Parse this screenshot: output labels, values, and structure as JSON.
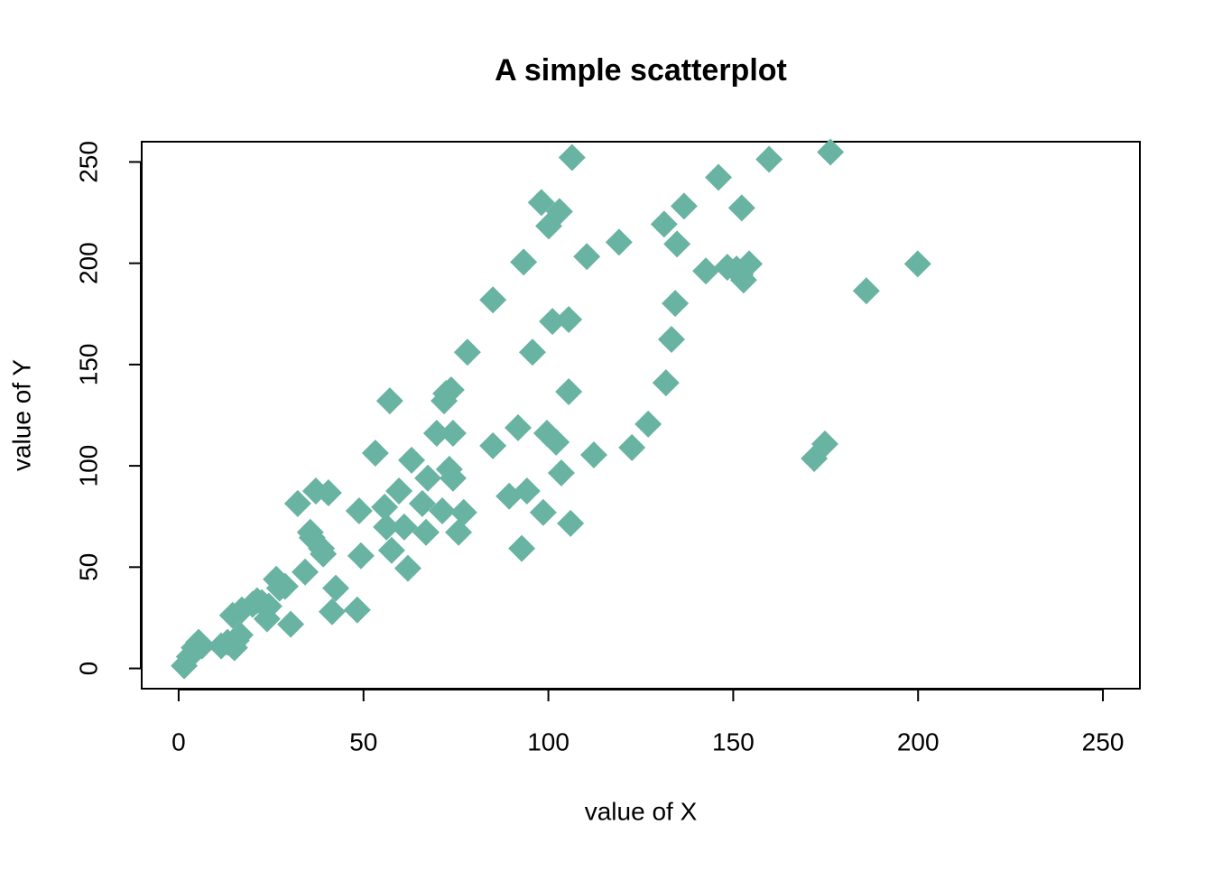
{
  "chart_data": {
    "type": "scatter",
    "title": "A simple scatterplot",
    "x_label": "value of X",
    "y_label": "value of Y",
    "x": [
      1.5,
      2.9,
      4.2,
      5.4,
      6.3,
      11.5,
      13.2,
      14.6,
      15.1,
      15.6,
      16.6,
      14.6,
      17.1,
      20.0,
      21.2,
      22.5,
      23.9,
      24.4,
      26.4,
      27.3,
      28.8,
      30.3,
      32.2,
      34.2,
      35.6,
      36.1,
      37.1,
      38.6,
      39.1,
      40.5,
      41.5,
      42.5,
      48.3,
      48.8,
      49.3,
      53.2,
      55.7,
      56.2,
      57.1,
      57.6,
      59.6,
      61.0,
      62.0,
      63.0,
      65.9,
      66.9,
      67.4,
      69.8,
      71.3,
      71.8,
      72.3,
      73.2,
      73.7,
      74.2,
      74.2,
      75.7,
      77.1,
      78.1,
      85.0,
      85.0,
      89.4,
      91.8,
      92.8,
      93.3,
      94.2,
      95.7,
      98.1,
      98.6,
      99.6,
      100.1,
      101.1,
      102.1,
      103.0,
      103.5,
      105.5,
      106.0,
      105.5,
      106.4,
      110.4,
      112.3,
      119.1,
      122.6,
      127.0,
      131.3,
      131.8,
      133.3,
      134.3,
      134.8,
      136.7,
      142.6,
      146.0,
      148.4,
      150.9,
      151.9,
      152.3,
      152.8,
      154.3,
      159.7,
      171.9,
      174.8,
      176.3,
      186.0,
      199.9
    ],
    "values": [
      1.3,
      5.8,
      10.2,
      12.9,
      11.1,
      11.1,
      12.9,
      11.1,
      10.2,
      13.8,
      16.5,
      26.2,
      28.9,
      31.6,
      33.4,
      32.5,
      24.5,
      30.7,
      44.0,
      39.6,
      40.5,
      21.8,
      81.4,
      47.6,
      67.2,
      64.5,
      87.6,
      59.2,
      56.5,
      86.7,
      28.0,
      39.6,
      28.9,
      77.8,
      55.6,
      106.3,
      79.6,
      69.8,
      132.1,
      58.3,
      87.6,
      69.8,
      49.4,
      102.8,
      81.4,
      67.2,
      93.9,
      116.1,
      77.8,
      132.1,
      135.7,
      98.3,
      137.5,
      116.1,
      93.9,
      67.2,
      77.0,
      156.1,
      181.9,
      109.9,
      85.0,
      118.8,
      59.2,
      200.6,
      87.6,
      156.1,
      230.0,
      77.0,
      116.1,
      218.4,
      171.3,
      111.7,
      225.5,
      96.5,
      172.2,
      71.6,
      136.6,
      252.2,
      203.3,
      105.4,
      210.4,
      109.0,
      120.6,
      219.3,
      141.0,
      162.4,
      180.2,
      209.5,
      228.2,
      196.2,
      242.4,
      198.0,
      197.1,
      194.4,
      227.3,
      191.7,
      199.7,
      251.3,
      103.6,
      110.8,
      254.9,
      186.4,
      199.7
    ],
    "color": "#69b3a2",
    "xlim": [
      -10,
      260
    ],
    "ylim": [
      -10,
      260
    ],
    "xticks": [
      0,
      50,
      100,
      150,
      200,
      250
    ],
    "yticks": [
      0,
      50,
      100,
      150,
      200,
      250
    ]
  }
}
